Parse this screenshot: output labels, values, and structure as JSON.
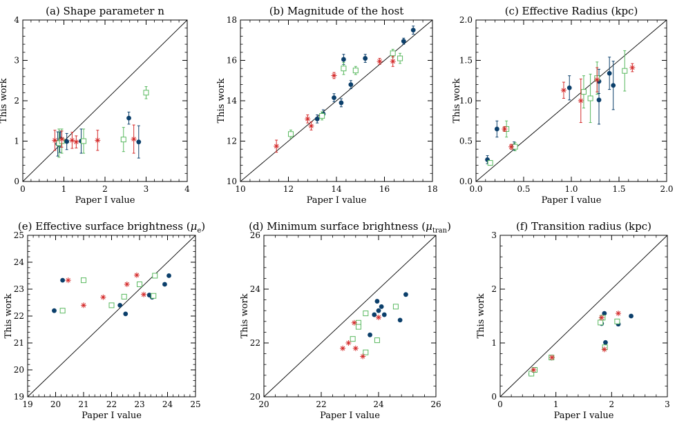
{
  "colors": {
    "blue": "#0b3f6b",
    "green": "#58b85e",
    "red": "#d42a2a",
    "axis": "#000000"
  },
  "chart_data": [
    {
      "type": "scatter",
      "title": "(a) Shape parameter n",
      "xlabel": "Paper I value",
      "ylabel": "This work",
      "xlim": [
        0,
        4
      ],
      "ylim": [
        0,
        4
      ],
      "xticks": [
        0,
        1,
        2,
        3,
        4
      ],
      "yticks": [
        0,
        1,
        2,
        3,
        4
      ],
      "xtick_labels": [
        "0",
        "1",
        "2",
        "3",
        "4"
      ],
      "ytick_labels": [
        "0",
        "1",
        "2",
        "3",
        "4"
      ],
      "diagonal": true,
      "series": [
        {
          "marker": "circle",
          "color": "#0b3f6b",
          "points": [
            {
              "x": 0.85,
              "y": 0.93,
              "e": 0.3
            },
            {
              "x": 0.9,
              "y": 0.97,
              "e": 0.25
            },
            {
              "x": 0.92,
              "y": 1.05,
              "e": 0.2
            },
            {
              "x": 1.07,
              "y": 0.99,
              "e": 0.2
            },
            {
              "x": 1.42,
              "y": 1.0,
              "e": 0.3
            },
            {
              "x": 2.58,
              "y": 1.57,
              "e": 0.15
            },
            {
              "x": 2.82,
              "y": 0.98,
              "e": 0.4
            }
          ]
        },
        {
          "marker": "square",
          "color": "#58b85e",
          "points": [
            {
              "x": 0.88,
              "y": 0.95,
              "e": 0.35
            },
            {
              "x": 0.95,
              "y": 1.0,
              "e": 0.3
            },
            {
              "x": 1.48,
              "y": 1.0,
              "e": 0.3
            },
            {
              "x": 2.45,
              "y": 1.04,
              "e": 0.3
            },
            {
              "x": 3.0,
              "y": 2.2,
              "e": 0.15
            }
          ]
        },
        {
          "marker": "star",
          "color": "#d42a2a",
          "points": [
            {
              "x": 0.78,
              "y": 1.02,
              "e": 0.25
            },
            {
              "x": 0.95,
              "y": 1.05,
              "e": 0.2
            },
            {
              "x": 1.2,
              "y": 1.02,
              "e": 0.2
            },
            {
              "x": 1.3,
              "y": 0.98,
              "e": 0.15
            },
            {
              "x": 1.82,
              "y": 1.02,
              "e": 0.25
            },
            {
              "x": 2.7,
              "y": 1.05,
              "e": 0.35
            }
          ]
        }
      ]
    },
    {
      "type": "scatter",
      "title": "(b) Magnitude of the host",
      "xlabel": "Paper I value",
      "ylabel": "This work",
      "xlim": [
        10,
        18
      ],
      "ylim": [
        10,
        18
      ],
      "xticks": [
        10,
        12,
        14,
        16,
        18
      ],
      "yticks": [
        10,
        12,
        14,
        16,
        18
      ],
      "xtick_labels": [
        "10",
        "12",
        "14",
        "16",
        "18"
      ],
      "ytick_labels": [
        "10",
        "12",
        "14",
        "16",
        "18"
      ],
      "diagonal": true,
      "series": [
        {
          "marker": "circle",
          "color": "#0b3f6b",
          "points": [
            {
              "x": 13.2,
              "y": 13.1,
              "e": 0.2
            },
            {
              "x": 13.45,
              "y": 13.35,
              "e": 0.2
            },
            {
              "x": 13.9,
              "y": 14.15,
              "e": 0.2
            },
            {
              "x": 14.2,
              "y": 13.9,
              "e": 0.2
            },
            {
              "x": 14.3,
              "y": 16.05,
              "e": 0.25
            },
            {
              "x": 14.6,
              "y": 14.8,
              "e": 0.2
            },
            {
              "x": 15.2,
              "y": 16.1,
              "e": 0.2
            },
            {
              "x": 16.8,
              "y": 16.95,
              "e": 0.15
            },
            {
              "x": 17.2,
              "y": 17.5,
              "e": 0.2
            }
          ]
        },
        {
          "marker": "square",
          "color": "#58b85e",
          "points": [
            {
              "x": 12.1,
              "y": 12.35,
              "e": 0.2
            },
            {
              "x": 13.4,
              "y": 13.25,
              "e": 0.2
            },
            {
              "x": 14.3,
              "y": 15.6,
              "e": 0.3
            },
            {
              "x": 14.8,
              "y": 15.5,
              "e": 0.2
            },
            {
              "x": 16.35,
              "y": 16.35,
              "e": 0.2
            },
            {
              "x": 16.65,
              "y": 16.1,
              "e": 0.25
            }
          ]
        },
        {
          "marker": "star",
          "color": "#d42a2a",
          "points": [
            {
              "x": 11.5,
              "y": 11.75,
              "e": 0.3
            },
            {
              "x": 12.8,
              "y": 13.1,
              "e": 0.2
            },
            {
              "x": 12.95,
              "y": 12.75,
              "e": 0.2
            },
            {
              "x": 13.9,
              "y": 15.25,
              "e": 0.15
            },
            {
              "x": 15.8,
              "y": 15.95,
              "e": 0.15
            },
            {
              "x": 16.35,
              "y": 15.95,
              "e": 0.25
            }
          ]
        }
      ]
    },
    {
      "type": "scatter",
      "title": "(c) Effective Radius (kpc)",
      "xlabel": "Paper I value",
      "ylabel": "This work",
      "xlim": [
        0,
        2
      ],
      "ylim": [
        0,
        2
      ],
      "xticks": [
        0,
        0.5,
        1.0,
        1.5,
        2.0
      ],
      "yticks": [
        0,
        0.5,
        1.0,
        1.5,
        2.0
      ],
      "xtick_labels": [
        "0.0",
        "0.5",
        "1.0",
        "1.5",
        "2.0"
      ],
      "ytick_labels": [
        "0.0",
        "0.5",
        "1.0",
        "1.5",
        "2.0"
      ],
      "diagonal": true,
      "series": [
        {
          "marker": "circle",
          "color": "#0b3f6b",
          "points": [
            {
              "x": 0.12,
              "y": 0.27,
              "e": 0.05
            },
            {
              "x": 0.22,
              "y": 0.65,
              "e": 0.1
            },
            {
              "x": 0.4,
              "y": 0.44,
              "e": 0.05
            },
            {
              "x": 0.98,
              "y": 1.16,
              "e": 0.15
            },
            {
              "x": 1.29,
              "y": 1.24,
              "e": 0.15
            },
            {
              "x": 1.29,
              "y": 1.01,
              "e": 0.3
            },
            {
              "x": 1.4,
              "y": 1.34,
              "e": 0.2
            },
            {
              "x": 1.44,
              "y": 1.19,
              "e": 0.3
            }
          ]
        },
        {
          "marker": "square",
          "color": "#58b85e",
          "points": [
            {
              "x": 0.15,
              "y": 0.23,
              "e": 0.03
            },
            {
              "x": 0.32,
              "y": 0.65,
              "e": 0.1
            },
            {
              "x": 0.41,
              "y": 0.43,
              "e": 0.05
            },
            {
              "x": 1.13,
              "y": 1.11,
              "e": 0.2
            },
            {
              "x": 1.2,
              "y": 1.03,
              "e": 0.3
            },
            {
              "x": 1.27,
              "y": 1.28,
              "e": 0.2
            },
            {
              "x": 1.56,
              "y": 1.37,
              "e": 0.25
            }
          ]
        },
        {
          "marker": "star",
          "color": "#d42a2a",
          "points": [
            {
              "x": 0.3,
              "y": 0.65,
              "e": 0.03
            },
            {
              "x": 0.37,
              "y": 0.43,
              "e": 0.03
            },
            {
              "x": 0.92,
              "y": 1.13,
              "e": 0.1
            },
            {
              "x": 1.1,
              "y": 1.0,
              "e": 0.27
            },
            {
              "x": 1.27,
              "y": 1.26,
              "e": 0.15
            },
            {
              "x": 1.64,
              "y": 1.41,
              "e": 0.05
            }
          ]
        }
      ]
    },
    {
      "type": "scatter",
      "title_pre": "(e) Effective surface brightness (",
      "title_sym": "μ",
      "title_sub": "e",
      "title_post": ")",
      "xlabel": "Paper I value",
      "ylabel": "This work",
      "xlim": [
        19,
        25
      ],
      "ylim": [
        19,
        25
      ],
      "xticks": [
        19,
        20,
        21,
        22,
        23,
        24,
        25
      ],
      "yticks": [
        19,
        20,
        21,
        22,
        23,
        24,
        25
      ],
      "xtick_labels": [
        "19",
        "20",
        "21",
        "22",
        "23",
        "24",
        "25"
      ],
      "ytick_labels": [
        "19",
        "20",
        "21",
        "22",
        "23",
        "24",
        "25"
      ],
      "diagonal": true,
      "series": [
        {
          "marker": "circle",
          "color": "#0b3f6b",
          "points": [
            {
              "x": 19.95,
              "y": 22.2
            },
            {
              "x": 20.25,
              "y": 23.33
            },
            {
              "x": 22.3,
              "y": 22.4
            },
            {
              "x": 22.5,
              "y": 22.08
            },
            {
              "x": 23.35,
              "y": 22.78
            },
            {
              "x": 23.45,
              "y": 22.7
            },
            {
              "x": 23.9,
              "y": 23.18
            },
            {
              "x": 24.05,
              "y": 23.5
            }
          ]
        },
        {
          "marker": "square",
          "color": "#58b85e",
          "points": [
            {
              "x": 20.25,
              "y": 22.2
            },
            {
              "x": 21.0,
              "y": 23.33
            },
            {
              "x": 22.0,
              "y": 22.4
            },
            {
              "x": 22.45,
              "y": 22.72
            },
            {
              "x": 23.0,
              "y": 23.18
            },
            {
              "x": 23.5,
              "y": 22.75
            },
            {
              "x": 23.55,
              "y": 23.5
            }
          ]
        },
        {
          "marker": "star",
          "color": "#d42a2a",
          "points": [
            {
              "x": 20.45,
              "y": 23.33
            },
            {
              "x": 21.0,
              "y": 22.4
            },
            {
              "x": 21.7,
              "y": 22.7
            },
            {
              "x": 22.55,
              "y": 23.18
            },
            {
              "x": 22.9,
              "y": 23.52
            },
            {
              "x": 23.15,
              "y": 22.8
            }
          ]
        }
      ]
    },
    {
      "type": "scatter",
      "title_pre": "(d) Minimum surface brightness (",
      "title_sym": "μ",
      "title_sub": "tran",
      "title_post": ")",
      "xlabel": "Paper I value",
      "ylabel": "This work",
      "xlim": [
        20,
        26
      ],
      "ylim": [
        20,
        26
      ],
      "xticks": [
        20,
        22,
        24,
        26
      ],
      "yticks": [
        20,
        22,
        24,
        26
      ],
      "xtick_labels": [
        "20",
        "22",
        "24",
        "26"
      ],
      "ytick_labels": [
        "20",
        "22",
        "24",
        "26"
      ],
      "diagonal": true,
      "series": [
        {
          "marker": "circle",
          "color": "#0b3f6b",
          "points": [
            {
              "x": 23.7,
              "y": 22.3
            },
            {
              "x": 23.85,
              "y": 23.05
            },
            {
              "x": 23.95,
              "y": 23.55
            },
            {
              "x": 24.0,
              "y": 23.2
            },
            {
              "x": 24.1,
              "y": 23.35
            },
            {
              "x": 24.2,
              "y": 23.05
            },
            {
              "x": 24.75,
              "y": 22.85
            },
            {
              "x": 24.95,
              "y": 23.8
            }
          ]
        },
        {
          "marker": "square",
          "color": "#58b85e",
          "points": [
            {
              "x": 23.1,
              "y": 22.15
            },
            {
              "x": 23.3,
              "y": 22.75
            },
            {
              "x": 23.3,
              "y": 22.6
            },
            {
              "x": 23.55,
              "y": 23.1
            },
            {
              "x": 23.55,
              "y": 21.65
            },
            {
              "x": 23.95,
              "y": 22.1
            },
            {
              "x": 24.6,
              "y": 23.35
            }
          ]
        },
        {
          "marker": "star",
          "color": "#d42a2a",
          "points": [
            {
              "x": 22.75,
              "y": 21.8
            },
            {
              "x": 22.95,
              "y": 22.0
            },
            {
              "x": 23.15,
              "y": 22.75
            },
            {
              "x": 23.2,
              "y": 21.8
            },
            {
              "x": 23.45,
              "y": 21.5
            },
            {
              "x": 24.0,
              "y": 22.95
            }
          ]
        }
      ]
    },
    {
      "type": "scatter",
      "title": "(f) Transition radius (kpc)",
      "xlabel": "Paper I value",
      "ylabel": "This work",
      "xlim": [
        0,
        3
      ],
      "ylim": [
        0,
        3
      ],
      "xticks": [
        0,
        1,
        2,
        3
      ],
      "yticks": [
        0,
        1,
        2,
        3
      ],
      "xtick_labels": [
        "0",
        "1",
        "2",
        "3"
      ],
      "ytick_labels": [
        "0",
        "1",
        "2",
        "3"
      ],
      "diagonal": true,
      "series": [
        {
          "marker": "circle",
          "color": "#0b3f6b",
          "points": [
            {
              "x": 0.55,
              "y": 0.42
            },
            {
              "x": 0.62,
              "y": 0.49
            },
            {
              "x": 0.92,
              "y": 0.72
            },
            {
              "x": 1.82,
              "y": 1.36
            },
            {
              "x": 1.87,
              "y": 1.55
            },
            {
              "x": 1.89,
              "y": 1.01
            },
            {
              "x": 2.12,
              "y": 1.35
            },
            {
              "x": 2.35,
              "y": 1.5
            }
          ]
        },
        {
          "marker": "square",
          "color": "#58b85e",
          "points": [
            {
              "x": 0.56,
              "y": 0.43
            },
            {
              "x": 0.62,
              "y": 0.5
            },
            {
              "x": 0.92,
              "y": 0.73
            },
            {
              "x": 1.8,
              "y": 1.38
            },
            {
              "x": 1.84,
              "y": 1.47
            },
            {
              "x": 1.88,
              "y": 0.92
            },
            {
              "x": 2.1,
              "y": 1.4
            }
          ]
        },
        {
          "marker": "star",
          "color": "#d42a2a",
          "points": [
            {
              "x": 0.6,
              "y": 0.5
            },
            {
              "x": 0.93,
              "y": 0.73
            },
            {
              "x": 1.82,
              "y": 1.47
            },
            {
              "x": 1.87,
              "y": 0.88
            },
            {
              "x": 2.12,
              "y": 1.55
            }
          ]
        }
      ]
    }
  ]
}
